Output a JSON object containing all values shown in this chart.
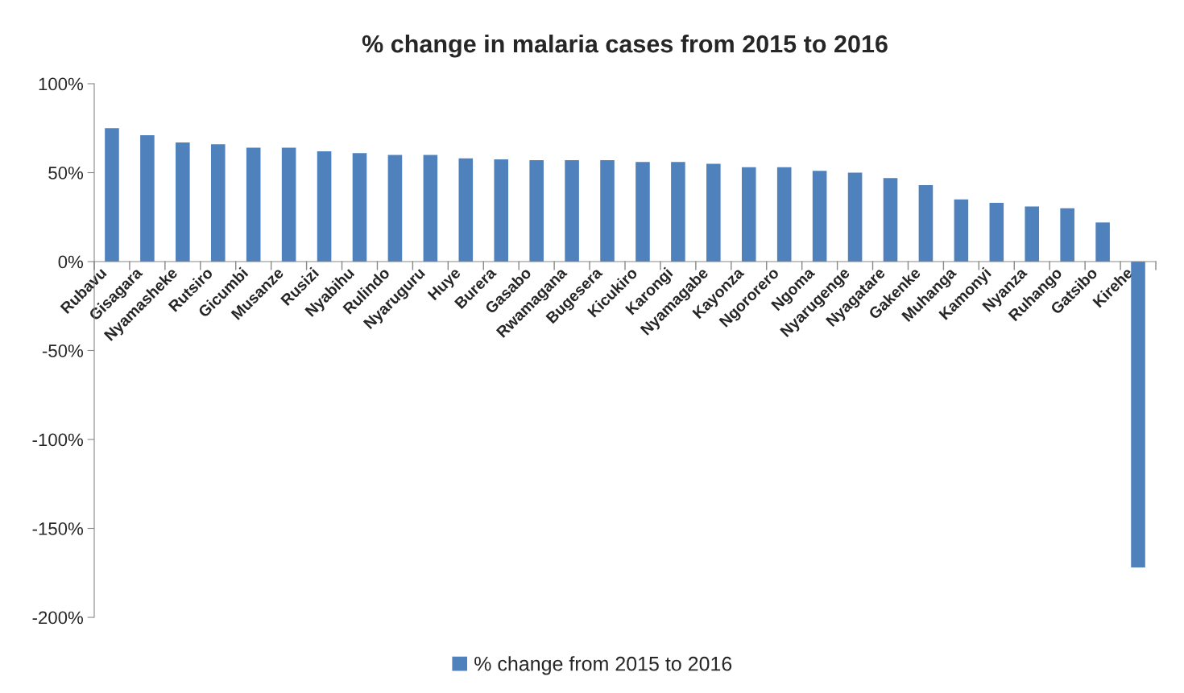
{
  "chart_data": {
    "type": "bar",
    "title": "% change in malaria cases from 2015 to 2016",
    "categories": [
      "Rubavu",
      "Gisagara",
      "Nyamasheke",
      "Rutsiro",
      "Gicumbi",
      "Musanze",
      "Rusizi",
      "Nyabihu",
      "Rulindo",
      "Nyaruguru",
      "Huye",
      "Burera",
      "Gasabo",
      "Rwamagana",
      "Bugesera",
      "Kicukiro",
      "Karongi",
      "Nyamagabe",
      "Kayonza",
      "Ngororero",
      "Ngoma",
      "Nyarugenge",
      "Nyagatare",
      "Gakenke",
      "Muhanga",
      "Kamonyi",
      "Nyanza",
      "Ruhango",
      "Gatsibo",
      "Kirehe"
    ],
    "series": [
      {
        "name": "% change from 2015 to 2016",
        "color": "#4f81bd",
        "values": [
          75,
          71,
          67,
          66,
          64,
          64,
          62,
          61,
          60,
          60,
          58,
          57.5,
          57,
          57,
          57,
          56,
          56,
          55,
          53,
          53,
          51,
          50,
          47,
          43,
          35,
          33,
          31,
          30,
          22,
          -172
        ]
      }
    ],
    "ylim": [
      -200,
      100
    ],
    "yticks": [
      {
        "value": -200,
        "label": "-200%"
      },
      {
        "value": -150,
        "label": "-150%"
      },
      {
        "value": -100,
        "label": "-100%"
      },
      {
        "value": -50,
        "label": "-50%"
      },
      {
        "value": 0,
        "label": "0%"
      },
      {
        "value": 50,
        "label": "50%"
      },
      {
        "value": 100,
        "label": "100%"
      }
    ],
    "grid": false,
    "legend": "bottom"
  }
}
